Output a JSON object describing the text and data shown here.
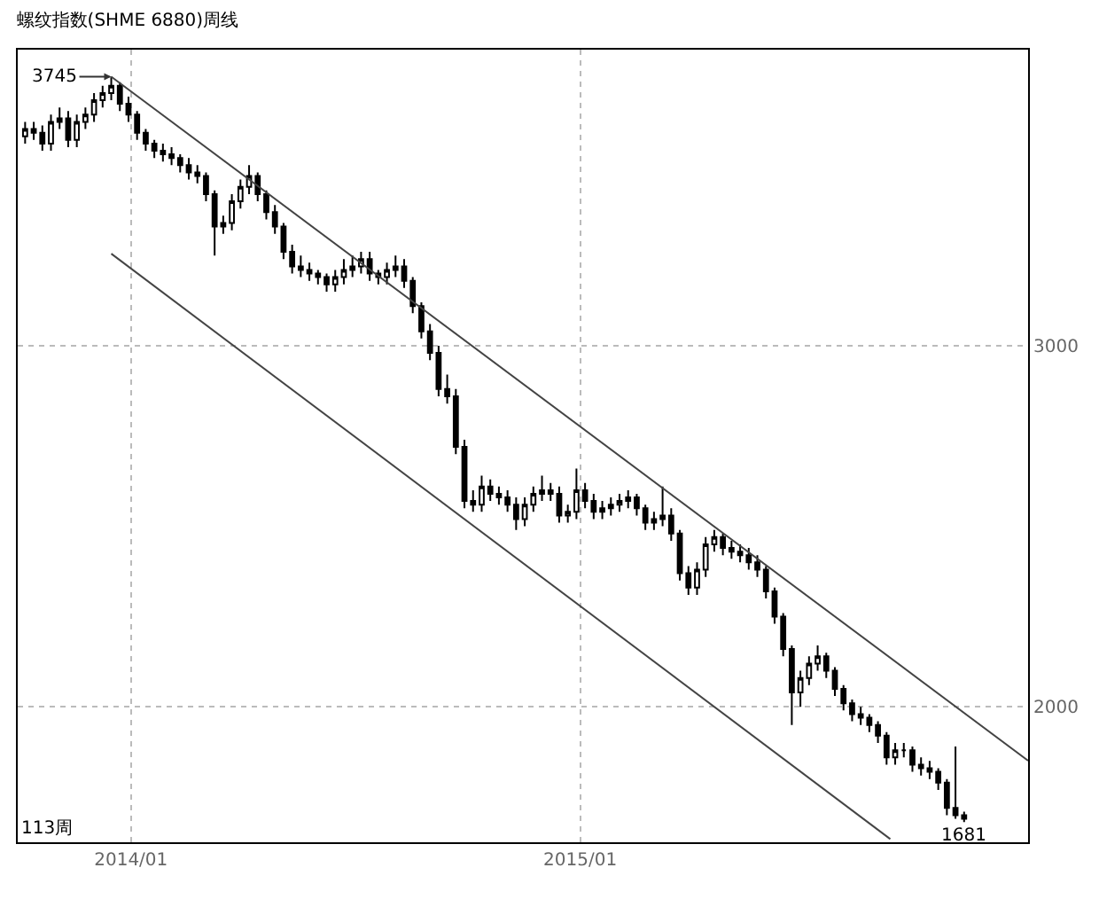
{
  "chart_data": {
    "type": "candlestick",
    "title": "螺纹指数(SHME 6880)周线",
    "x": [
      "2013-10-07",
      "2013-10-14",
      "2013-10-21",
      "2013-10-28",
      "2013-11-04",
      "2013-11-11",
      "2013-11-18",
      "2013-11-25",
      "2013-12-02",
      "2013-12-09",
      "2013-12-16",
      "2013-12-23",
      "2013-12-30",
      "2014-01-06",
      "2014-01-13",
      "2014-01-20",
      "2014-01-27",
      "2014-02-03",
      "2014-02-10",
      "2014-02-17",
      "2014-02-24",
      "2014-03-03",
      "2014-03-10",
      "2014-03-17",
      "2014-03-24",
      "2014-03-31",
      "2014-04-07",
      "2014-04-14",
      "2014-04-21",
      "2014-04-28",
      "2014-05-05",
      "2014-05-12",
      "2014-05-19",
      "2014-05-26",
      "2014-06-02",
      "2014-06-09",
      "2014-06-16",
      "2014-06-23",
      "2014-06-30",
      "2014-07-07",
      "2014-07-14",
      "2014-07-21",
      "2014-07-28",
      "2014-08-04",
      "2014-08-11",
      "2014-08-18",
      "2014-08-25",
      "2014-09-01",
      "2014-09-08",
      "2014-09-15",
      "2014-09-22",
      "2014-09-29",
      "2014-10-06",
      "2014-10-13",
      "2014-10-20",
      "2014-10-27",
      "2014-11-03",
      "2014-11-10",
      "2014-11-17",
      "2014-11-24",
      "2014-12-01",
      "2014-12-08",
      "2014-12-15",
      "2014-12-22",
      "2014-12-29",
      "2015-01-05",
      "2015-01-12",
      "2015-01-19",
      "2015-01-26",
      "2015-02-02",
      "2015-02-09",
      "2015-02-16",
      "2015-02-23",
      "2015-03-02",
      "2015-03-09",
      "2015-03-16",
      "2015-03-23",
      "2015-03-30",
      "2015-04-06",
      "2015-04-13",
      "2015-04-20",
      "2015-04-27",
      "2015-05-04",
      "2015-05-11",
      "2015-05-18",
      "2015-05-25",
      "2015-06-01",
      "2015-06-08",
      "2015-06-15",
      "2015-06-22",
      "2015-06-29",
      "2015-07-06",
      "2015-07-13",
      "2015-07-20",
      "2015-07-27",
      "2015-08-03",
      "2015-08-10",
      "2015-08-17",
      "2015-08-24",
      "2015-08-31",
      "2015-09-07",
      "2015-09-14",
      "2015-09-21",
      "2015-09-28",
      "2015-10-05",
      "2015-10-12",
      "2015-10-19",
      "2015-10-26",
      "2015-11-02",
      "2015-11-09"
    ],
    "ohlc": [
      [
        3580,
        3620,
        3560,
        3600
      ],
      [
        3600,
        3620,
        3570,
        3590
      ],
      [
        3590,
        3610,
        3540,
        3560
      ],
      [
        3560,
        3640,
        3540,
        3620
      ],
      [
        3620,
        3660,
        3600,
        3630
      ],
      [
        3630,
        3650,
        3550,
        3570
      ],
      [
        3570,
        3640,
        3550,
        3620
      ],
      [
        3620,
        3660,
        3600,
        3640
      ],
      [
        3640,
        3700,
        3620,
        3680
      ],
      [
        3680,
        3720,
        3660,
        3700
      ],
      [
        3700,
        3745,
        3680,
        3720
      ],
      [
        3720,
        3730,
        3650,
        3670
      ],
      [
        3670,
        3690,
        3620,
        3640
      ],
      [
        3640,
        3650,
        3570,
        3590
      ],
      [
        3590,
        3600,
        3540,
        3560
      ],
      [
        3560,
        3570,
        3520,
        3540
      ],
      [
        3540,
        3560,
        3510,
        3530
      ],
      [
        3530,
        3550,
        3500,
        3520
      ],
      [
        3520,
        3530,
        3480,
        3500
      ],
      [
        3500,
        3520,
        3460,
        3480
      ],
      [
        3480,
        3500,
        3450,
        3470
      ],
      [
        3470,
        3480,
        3400,
        3420
      ],
      [
        3420,
        3430,
        3250,
        3330
      ],
      [
        3330,
        3360,
        3310,
        3340
      ],
      [
        3340,
        3420,
        3320,
        3400
      ],
      [
        3400,
        3460,
        3380,
        3440
      ],
      [
        3440,
        3500,
        3420,
        3470
      ],
      [
        3470,
        3480,
        3400,
        3420
      ],
      [
        3420,
        3430,
        3350,
        3370
      ],
      [
        3370,
        3390,
        3310,
        3330
      ],
      [
        3330,
        3340,
        3240,
        3260
      ],
      [
        3260,
        3280,
        3200,
        3220
      ],
      [
        3220,
        3250,
        3190,
        3210
      ],
      [
        3210,
        3230,
        3180,
        3200
      ],
      [
        3200,
        3210,
        3170,
        3190
      ],
      [
        3190,
        3200,
        3150,
        3170
      ],
      [
        3170,
        3210,
        3150,
        3190
      ],
      [
        3190,
        3240,
        3170,
        3210
      ],
      [
        3210,
        3250,
        3190,
        3220
      ],
      [
        3220,
        3260,
        3200,
        3240
      ],
      [
        3240,
        3260,
        3180,
        3200
      ],
      [
        3200,
        3210,
        3170,
        3190
      ],
      [
        3190,
        3230,
        3170,
        3210
      ],
      [
        3210,
        3250,
        3190,
        3220
      ],
      [
        3220,
        3240,
        3160,
        3180
      ],
      [
        3180,
        3190,
        3090,
        3110
      ],
      [
        3110,
        3120,
        3020,
        3040
      ],
      [
        3040,
        3060,
        2960,
        2980
      ],
      [
        2980,
        3000,
        2860,
        2880
      ],
      [
        2880,
        2920,
        2840,
        2860
      ],
      [
        2860,
        2880,
        2700,
        2720
      ],
      [
        2720,
        2740,
        2550,
        2570
      ],
      [
        2570,
        2600,
        2540,
        2560
      ],
      [
        2560,
        2640,
        2540,
        2610
      ],
      [
        2610,
        2630,
        2570,
        2590
      ],
      [
        2590,
        2610,
        2560,
        2580
      ],
      [
        2580,
        2600,
        2540,
        2560
      ],
      [
        2560,
        2580,
        2490,
        2520
      ],
      [
        2520,
        2580,
        2500,
        2560
      ],
      [
        2560,
        2610,
        2540,
        2590
      ],
      [
        2590,
        2640,
        2570,
        2600
      ],
      [
        2600,
        2620,
        2570,
        2590
      ],
      [
        2590,
        2610,
        2510,
        2530
      ],
      [
        2530,
        2560,
        2510,
        2540
      ],
      [
        2540,
        2660,
        2520,
        2600
      ],
      [
        2600,
        2620,
        2550,
        2570
      ],
      [
        2570,
        2590,
        2520,
        2540
      ],
      [
        2540,
        2570,
        2520,
        2550
      ],
      [
        2550,
        2580,
        2530,
        2560
      ],
      [
        2560,
        2590,
        2540,
        2570
      ],
      [
        2570,
        2600,
        2550,
        2580
      ],
      [
        2580,
        2590,
        2530,
        2550
      ],
      [
        2550,
        2560,
        2490,
        2510
      ],
      [
        2510,
        2540,
        2490,
        2520
      ],
      [
        2520,
        2610,
        2500,
        2530
      ],
      [
        2530,
        2550,
        2460,
        2480
      ],
      [
        2480,
        2490,
        2350,
        2370
      ],
      [
        2370,
        2390,
        2310,
        2330
      ],
      [
        2330,
        2400,
        2310,
        2380
      ],
      [
        2380,
        2470,
        2360,
        2450
      ],
      [
        2450,
        2490,
        2430,
        2470
      ],
      [
        2470,
        2480,
        2420,
        2440
      ],
      [
        2440,
        2460,
        2410,
        2430
      ],
      [
        2430,
        2450,
        2400,
        2420
      ],
      [
        2420,
        2440,
        2380,
        2400
      ],
      [
        2400,
        2420,
        2360,
        2380
      ],
      [
        2380,
        2390,
        2300,
        2320
      ],
      [
        2320,
        2330,
        2230,
        2250
      ],
      [
        2250,
        2260,
        2140,
        2160
      ],
      [
        2160,
        2170,
        1950,
        2040
      ],
      [
        2040,
        2100,
        2000,
        2080
      ],
      [
        2080,
        2140,
        2060,
        2120
      ],
      [
        2120,
        2170,
        2100,
        2140
      ],
      [
        2140,
        2150,
        2080,
        2100
      ],
      [
        2100,
        2110,
        2030,
        2050
      ],
      [
        2050,
        2060,
        1990,
        2010
      ],
      [
        2010,
        2020,
        1960,
        1980
      ],
      [
        1980,
        2000,
        1950,
        1970
      ],
      [
        1970,
        1980,
        1930,
        1950
      ],
      [
        1950,
        1960,
        1900,
        1920
      ],
      [
        1920,
        1930,
        1840,
        1860
      ],
      [
        1860,
        1900,
        1840,
        1880
      ],
      [
        1880,
        1900,
        1860,
        1880
      ],
      [
        1880,
        1890,
        1820,
        1840
      ],
      [
        1840,
        1860,
        1810,
        1830
      ],
      [
        1830,
        1850,
        1800,
        1820
      ],
      [
        1820,
        1830,
        1770,
        1790
      ],
      [
        1790,
        1800,
        1700,
        1720
      ],
      [
        1720,
        1890,
        1690,
        1700
      ],
      [
        1700,
        1710,
        1681,
        1690
      ]
    ],
    "series": [
      {
        "type": "line",
        "x": [
          "2013-12-16",
          "2015-12-31"
        ],
        "values": [
          3745,
          1851
        ],
        "color": "#444444"
      },
      {
        "type": "line",
        "x": [
          "2013-12-16",
          "2015-09-10"
        ],
        "values": [
          3255,
          1634
        ],
        "color": "#444444"
      }
    ],
    "annotations": [
      {
        "text": "3745",
        "x": "2013-12-16",
        "y": 3745
      },
      {
        "text": "1681",
        "x": "2015-11-09",
        "y": 1681
      },
      "113周"
    ],
    "xlim": [
      "2013-10-01",
      "2015-12-31"
    ],
    "xticks": [
      {
        "value": "2014-01-01",
        "label": "2014/01"
      },
      {
        "value": "2015-01-01",
        "label": "2015/01"
      }
    ],
    "ylim": [
      1625,
      3820
    ],
    "yticks": [
      2000,
      3000
    ],
    "grid": true
  }
}
